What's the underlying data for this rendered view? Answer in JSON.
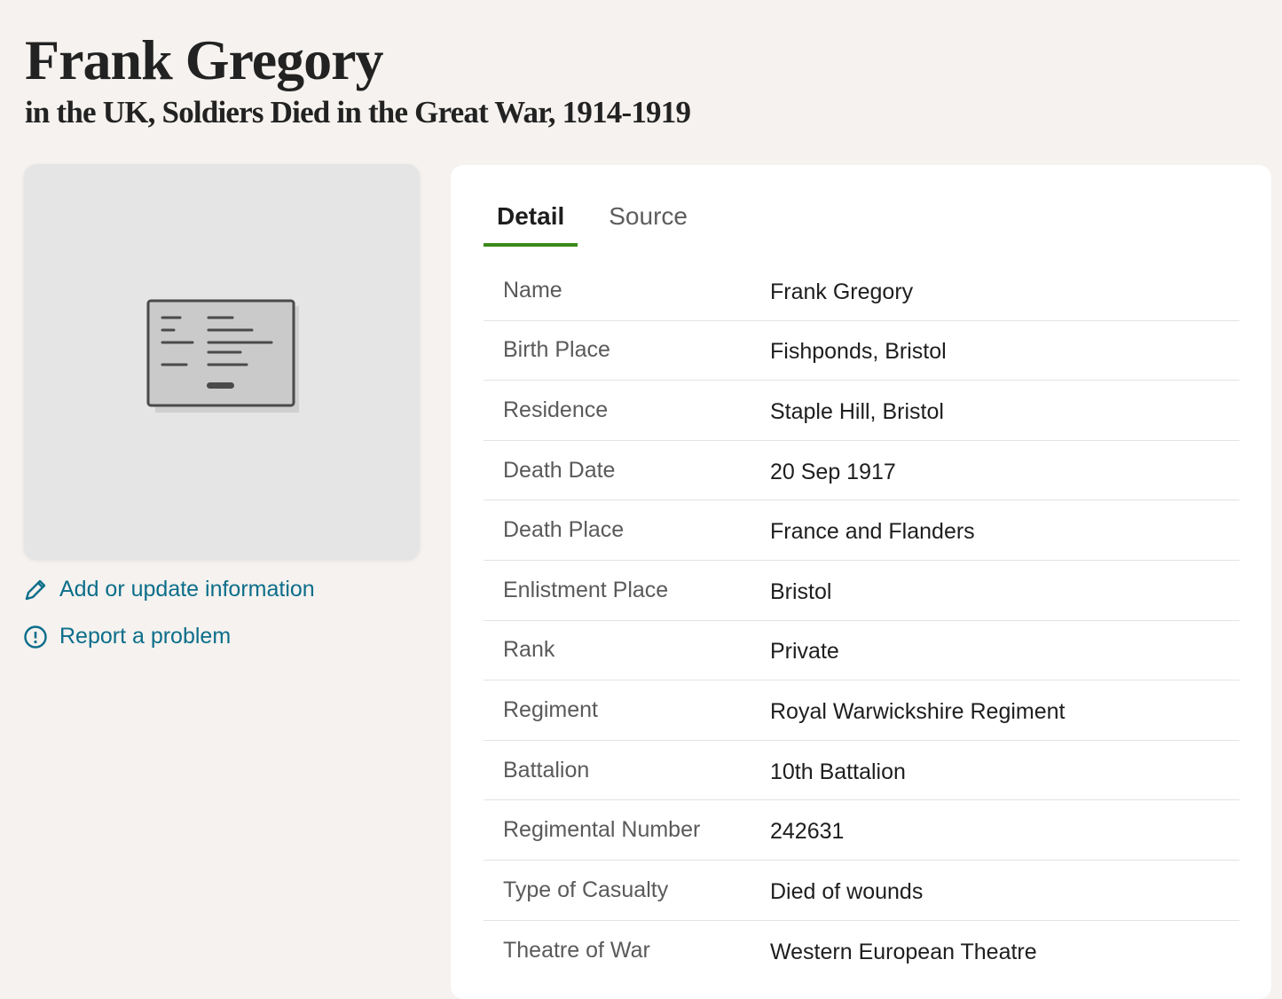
{
  "header": {
    "title": "Frank Gregory",
    "subtitle": "in the UK, Soldiers Died in the Great War, 1914-1919"
  },
  "media": {
    "icon": "record-document-icon"
  },
  "actions": {
    "add_update": {
      "label": "Add or update information",
      "icon": "pencil-icon"
    },
    "report": {
      "label": "Report a problem",
      "icon": "alert-circle-icon"
    }
  },
  "tabs": [
    {
      "label": "Detail",
      "active": true
    },
    {
      "label": "Source",
      "active": false
    }
  ],
  "colors": {
    "link": "#0c6e8a",
    "tab_underline": "#3a8a1a",
    "background": "#f5f2ef"
  },
  "details": [
    {
      "label": "Name",
      "value": "Frank Gregory"
    },
    {
      "label": "Birth Place",
      "value": "Fishponds, Bristol"
    },
    {
      "label": "Residence",
      "value": "Staple Hill, Bristol"
    },
    {
      "label": "Death Date",
      "value": "20 Sep 1917"
    },
    {
      "label": "Death Place",
      "value": "France and Flanders"
    },
    {
      "label": "Enlistment Place",
      "value": "Bristol"
    },
    {
      "label": "Rank",
      "value": "Private"
    },
    {
      "label": "Regiment",
      "value": "Royal Warwickshire Regiment"
    },
    {
      "label": "Battalion",
      "value": "10th Battalion"
    },
    {
      "label": "Regimental Number",
      "value": "242631"
    },
    {
      "label": "Type of Casualty",
      "value": "Died of wounds"
    },
    {
      "label": "Theatre of War",
      "value": "Western European Theatre"
    }
  ]
}
